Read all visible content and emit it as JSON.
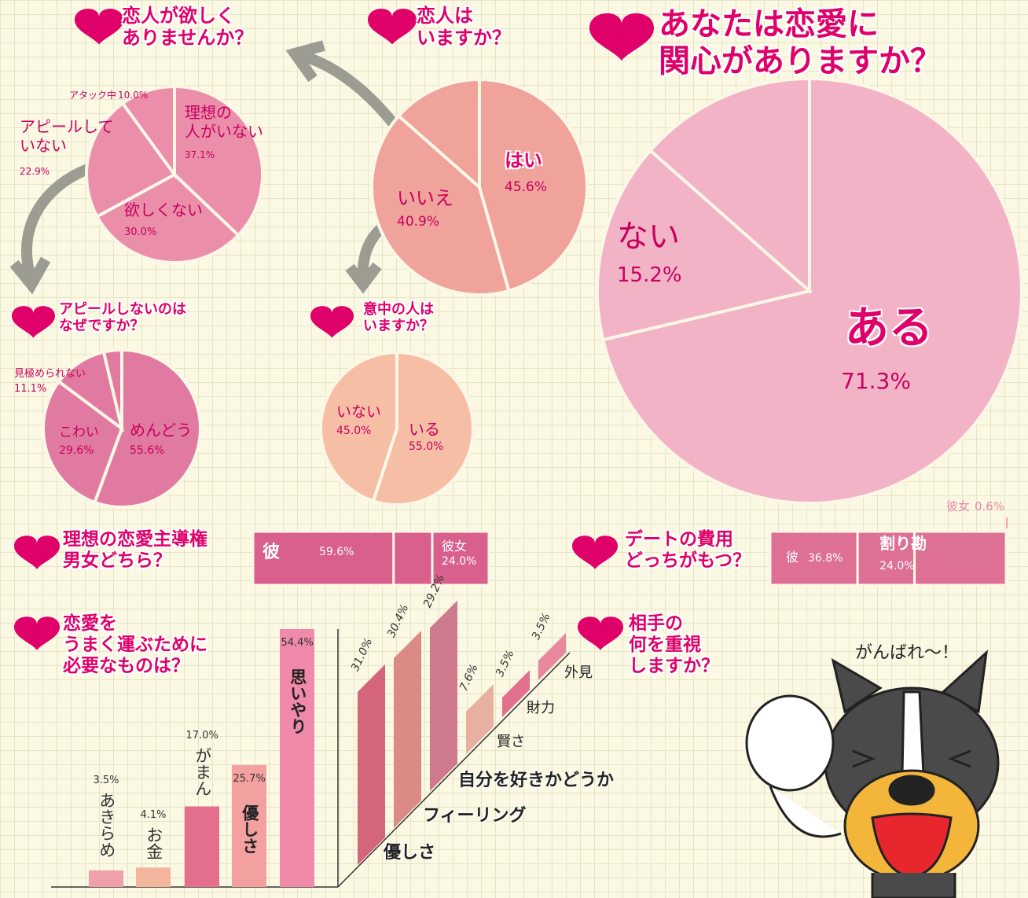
{
  "chart_data": [
    {
      "type": "pie",
      "title": "あなたは恋愛に\n関心がありますか？",
      "categories": [
        "ある",
        "ない",
        null
      ],
      "values": [
        71.3,
        15.2,
        13.5
      ],
      "value_labels": [
        "71.3%",
        "15.2%",
        null
      ],
      "color": "#f2b3c6"
    },
    {
      "type": "pie",
      "title": "恋人は\nいますか？",
      "categories": [
        "はい",
        "いいえ",
        null
      ],
      "values": [
        45.6,
        40.9,
        13.5
      ],
      "value_labels": [
        "45.6%",
        "40.9%",
        null
      ],
      "color": "#f0a39a"
    },
    {
      "type": "pie",
      "title": "恋人が欲しく\nありませんか？",
      "categories": [
        "理想の\n人がいない",
        "欲しくない",
        "アピールして\nいない",
        "アタック中"
      ],
      "values": [
        37.1,
        30.0,
        22.9,
        10.0
      ],
      "value_labels": [
        "37.1%",
        "30.0%",
        "22.9%",
        "10.0%"
      ],
      "color": "#ea8eaa"
    },
    {
      "type": "pie",
      "title": "アピールしないのは\nなぜですか？",
      "categories": [
        "めんどう",
        "こわい",
        "見極められない",
        null
      ],
      "values": [
        55.6,
        29.6,
        11.1,
        3.7
      ],
      "value_labels": [
        "55.6%",
        "29.6%",
        "11.1%",
        null
      ],
      "color": "#e17aa0"
    },
    {
      "type": "pie",
      "title": "意中の人は\nいますか？",
      "categories": [
        "いる",
        "いない"
      ],
      "values": [
        55.0,
        45.0
      ],
      "value_labels": [
        "55.0%",
        "45.0%"
      ],
      "color": "#f7bea6"
    },
    {
      "type": "stackedbar",
      "title": "理想の恋愛主導権\n男女どちら？",
      "categories": [
        "彼",
        null,
        "彼女"
      ],
      "values": [
        59.6,
        16.4,
        24.0
      ],
      "value_labels": [
        "59.6%",
        null,
        "24.0%"
      ],
      "color": "#d9608c"
    },
    {
      "type": "stackedbar",
      "title": "デートの費用\nどっちがもつ？",
      "categories": [
        "彼",
        "割り勘",
        null,
        "彼女"
      ],
      "values": [
        36.8,
        24.0,
        38.6,
        0.6
      ],
      "value_labels": [
        "36.8%",
        "24.0%",
        null,
        "0.6%"
      ],
      "color": "#dd7094"
    },
    {
      "type": "bar",
      "title": "恋愛を\nうまく運ぶために\n必要なものは？",
      "categories": [
        "あきらめ",
        "お金",
        "がまん",
        "優しさ",
        "思いやり"
      ],
      "values": [
        3.5,
        4.1,
        17.0,
        25.7,
        54.4
      ],
      "value_labels": [
        "3.5%",
        "4.1%",
        "17.0%",
        "25.7%",
        "54.4%"
      ],
      "colors": [
        "#f0a0a8",
        "#f3b59c",
        "#e46f8c",
        "#f2a0a0",
        "#ef8aa8"
      ]
    },
    {
      "type": "bar3d",
      "title": "相手の\n何を重視\nしますか？",
      "categories": [
        "優しさ",
        "フィーリング",
        "自分を好きかどうか",
        "賢さ",
        "財力",
        "外見"
      ],
      "values": [
        31.0,
        30.4,
        29.2,
        7.6,
        3.5,
        3.5
      ],
      "value_labels": [
        "31.0%",
        "30.4%",
        "29.2%",
        "7.6%",
        "3.5%",
        "3.5%"
      ],
      "colors": [
        "#d4657a",
        "#dc8a86",
        "#cf7a8c",
        "#e8b0a0",
        "#e0708c",
        "#e8889c"
      ]
    }
  ],
  "speech_bubble": "がんばれ～！"
}
